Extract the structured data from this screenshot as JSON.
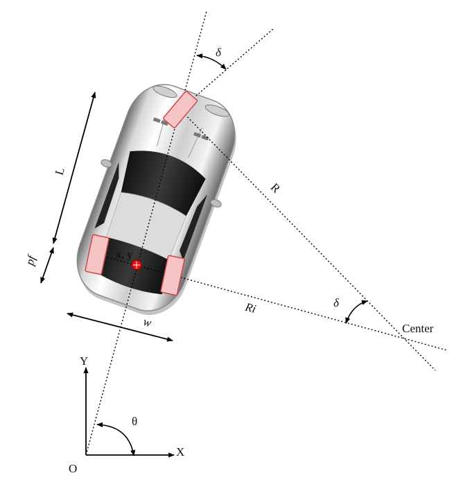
{
  "labels": {
    "delta_top": "δ",
    "delta_bottom": "δ",
    "R": "R",
    "Ri": "Ri",
    "L": "L",
    "pf": "pf",
    "w": "w",
    "xy": "x, y",
    "center": "Center",
    "y_axis": "Y",
    "x_axis": "X",
    "theta": "θ",
    "origin": "O"
  },
  "colors": {
    "wheel_fill": "#f6c4c4",
    "wheel_stroke": "#c94848",
    "reference_point": "#e81010",
    "xy_label": "#d01010"
  },
  "icons": {
    "car": "top-view-car-icon"
  }
}
